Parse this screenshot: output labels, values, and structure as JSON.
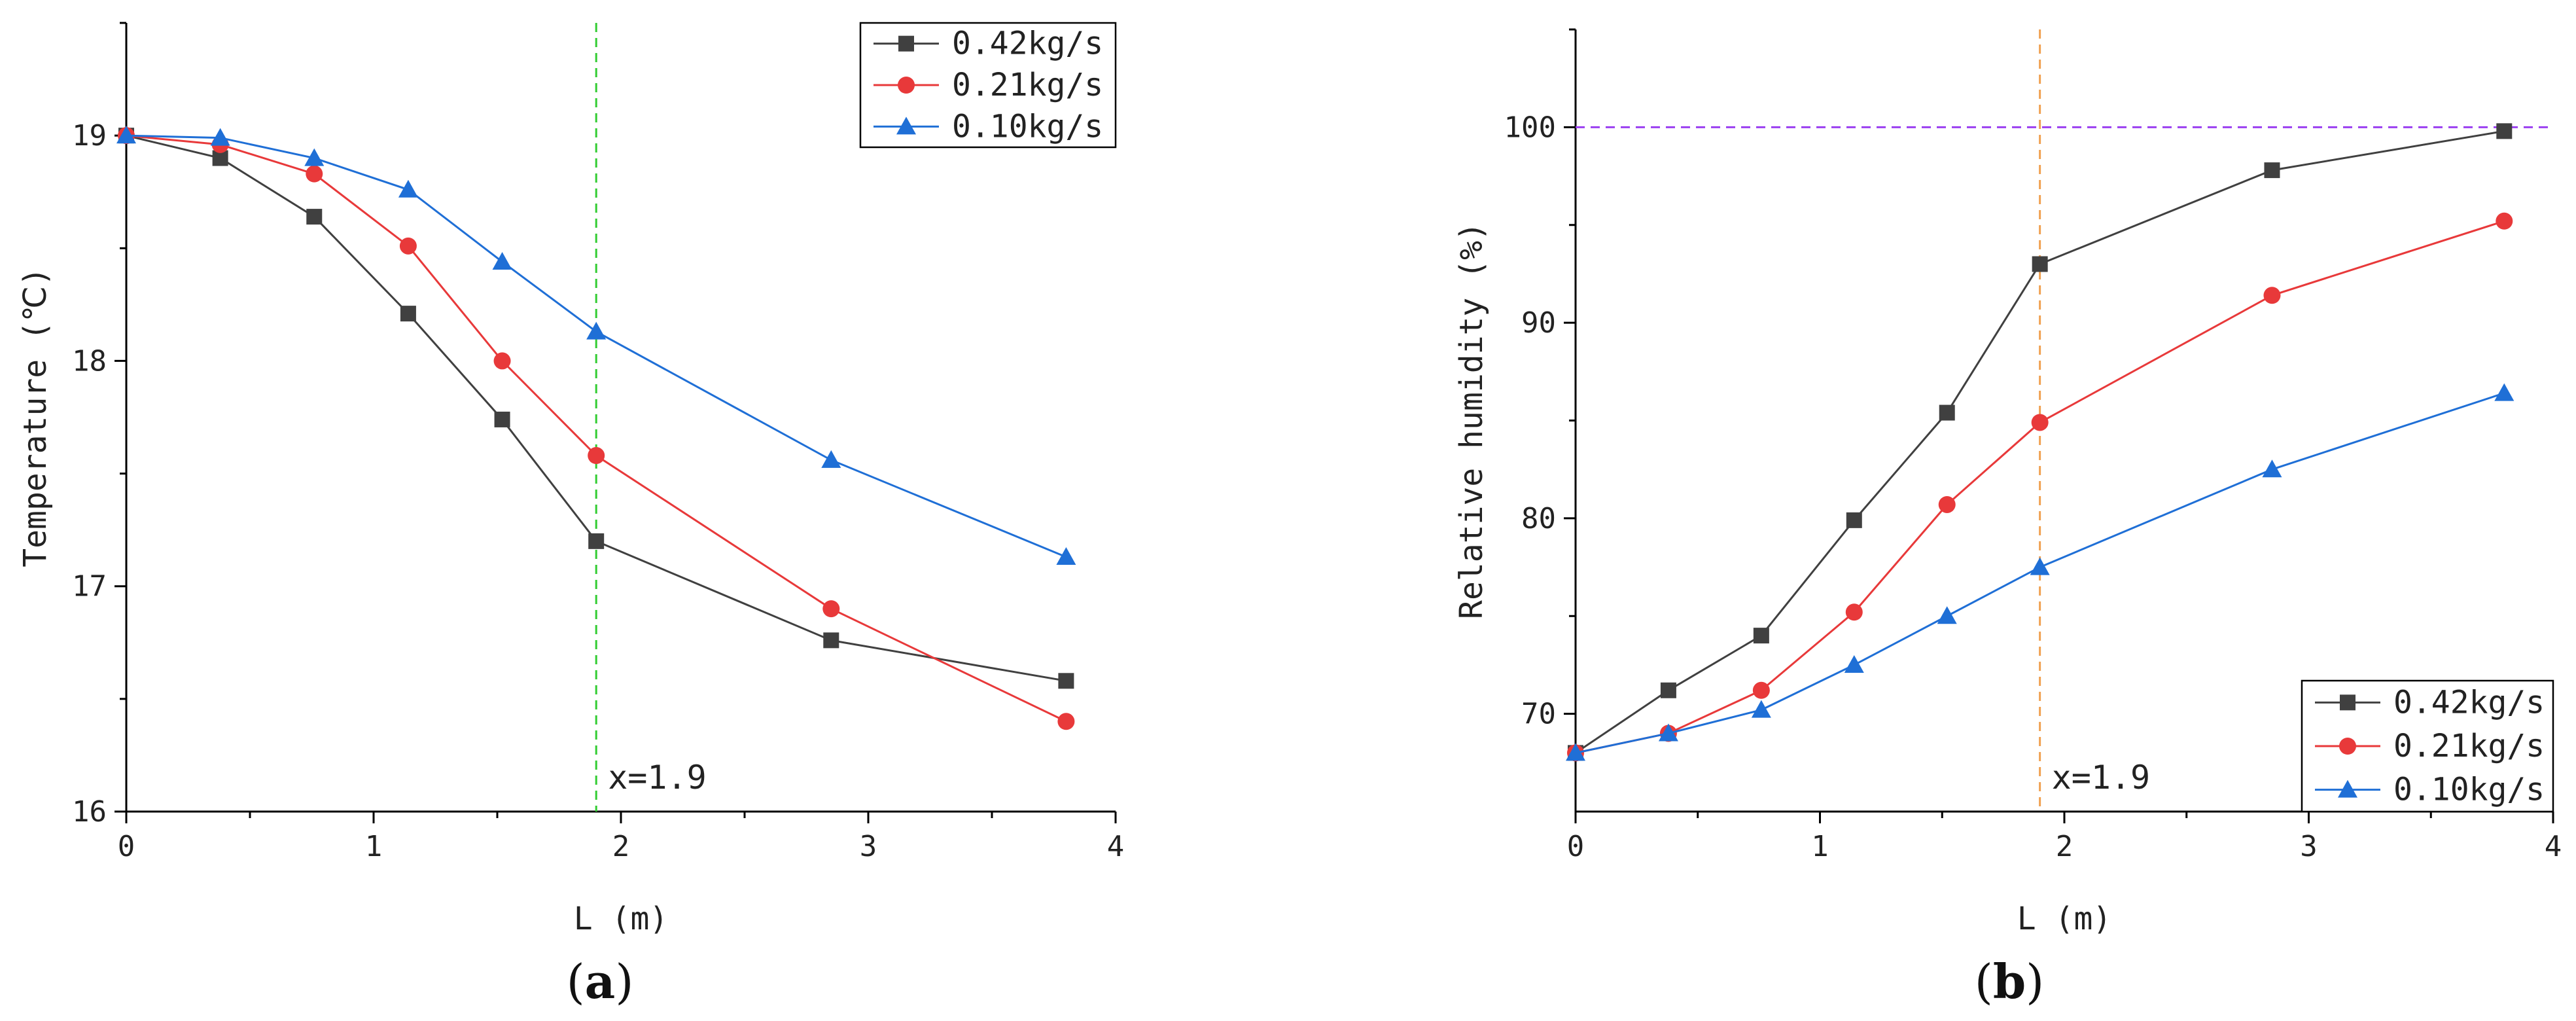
{
  "chart_data": [
    {
      "id": "a",
      "type": "line",
      "panel_label": "(a)",
      "panel_open": "(",
      "panel_letter": "a",
      "panel_close": ")",
      "xlabel": "L (m)",
      "ylabel": "Temperature (℃)",
      "xlim": [
        0,
        4
      ],
      "ylim": [
        16,
        19.5
      ],
      "xticks": [
        0,
        1,
        2,
        3,
        4
      ],
      "yticks": [
        16,
        17,
        18,
        19
      ],
      "xtick_labels": [
        "0",
        "1",
        "2",
        "3",
        "4"
      ],
      "ytick_labels": [
        "16",
        "17",
        "18",
        "19"
      ],
      "legend_position": "top-right",
      "x": [
        0,
        0.38,
        0.76,
        1.14,
        1.52,
        1.9,
        2.85,
        3.8
      ],
      "series": [
        {
          "name": "0.42kg/s",
          "color": "#404040",
          "marker": "square",
          "values": [
            19.0,
            18.9,
            18.64,
            18.21,
            17.74,
            17.2,
            16.76,
            16.58
          ]
        },
        {
          "name": "0.21kg/s",
          "color": "#e8393a",
          "marker": "circle",
          "values": [
            19.0,
            18.96,
            18.83,
            18.51,
            18.0,
            17.58,
            16.9,
            16.4
          ]
        },
        {
          "name": "0.10kg/s",
          "color": "#1f6fd6",
          "marker": "triangle",
          "values": [
            19.0,
            18.99,
            18.9,
            18.76,
            18.44,
            18.13,
            17.56,
            17.13
          ]
        }
      ],
      "reference_lines": [
        {
          "orientation": "vertical",
          "value": 1.9,
          "color": "#33cc33",
          "label": "x=1.9"
        }
      ]
    },
    {
      "id": "b",
      "type": "line",
      "panel_label": "(b)",
      "panel_open": "(",
      "panel_letter": "b",
      "panel_close": ")",
      "xlabel": "L (m)",
      "ylabel": "Relative humidity (%)",
      "xlim": [
        0,
        4
      ],
      "ylim": [
        65,
        105
      ],
      "xticks": [
        0,
        1,
        2,
        3,
        4
      ],
      "yticks": [
        70,
        80,
        90,
        100
      ],
      "xtick_labels": [
        "0",
        "1",
        "2",
        "3",
        "4"
      ],
      "ytick_labels": [
        "70",
        "80",
        "90",
        "100"
      ],
      "legend_position": "bottom-right",
      "x": [
        0,
        0.38,
        0.76,
        1.14,
        1.52,
        1.9,
        2.85,
        3.8
      ],
      "series": [
        {
          "name": "0.42kg/s",
          "color": "#404040",
          "marker": "square",
          "values": [
            68.0,
            71.2,
            74.0,
            79.9,
            85.4,
            93.0,
            97.8,
            99.8
          ]
        },
        {
          "name": "0.21kg/s",
          "color": "#e8393a",
          "marker": "circle",
          "values": [
            68.0,
            69.0,
            71.2,
            75.2,
            80.7,
            84.9,
            91.4,
            95.2
          ]
        },
        {
          "name": "0.10kg/s",
          "color": "#1f6fd6",
          "marker": "triangle",
          "values": [
            68.0,
            69.0,
            70.2,
            72.5,
            75.0,
            77.5,
            82.5,
            86.4
          ]
        }
      ],
      "reference_lines": [
        {
          "orientation": "vertical",
          "value": 1.9,
          "color": "#f0a050",
          "label": "x=1.9"
        },
        {
          "orientation": "horizontal",
          "value": 100,
          "color": "#9b3ff0",
          "label": ""
        }
      ]
    }
  ]
}
